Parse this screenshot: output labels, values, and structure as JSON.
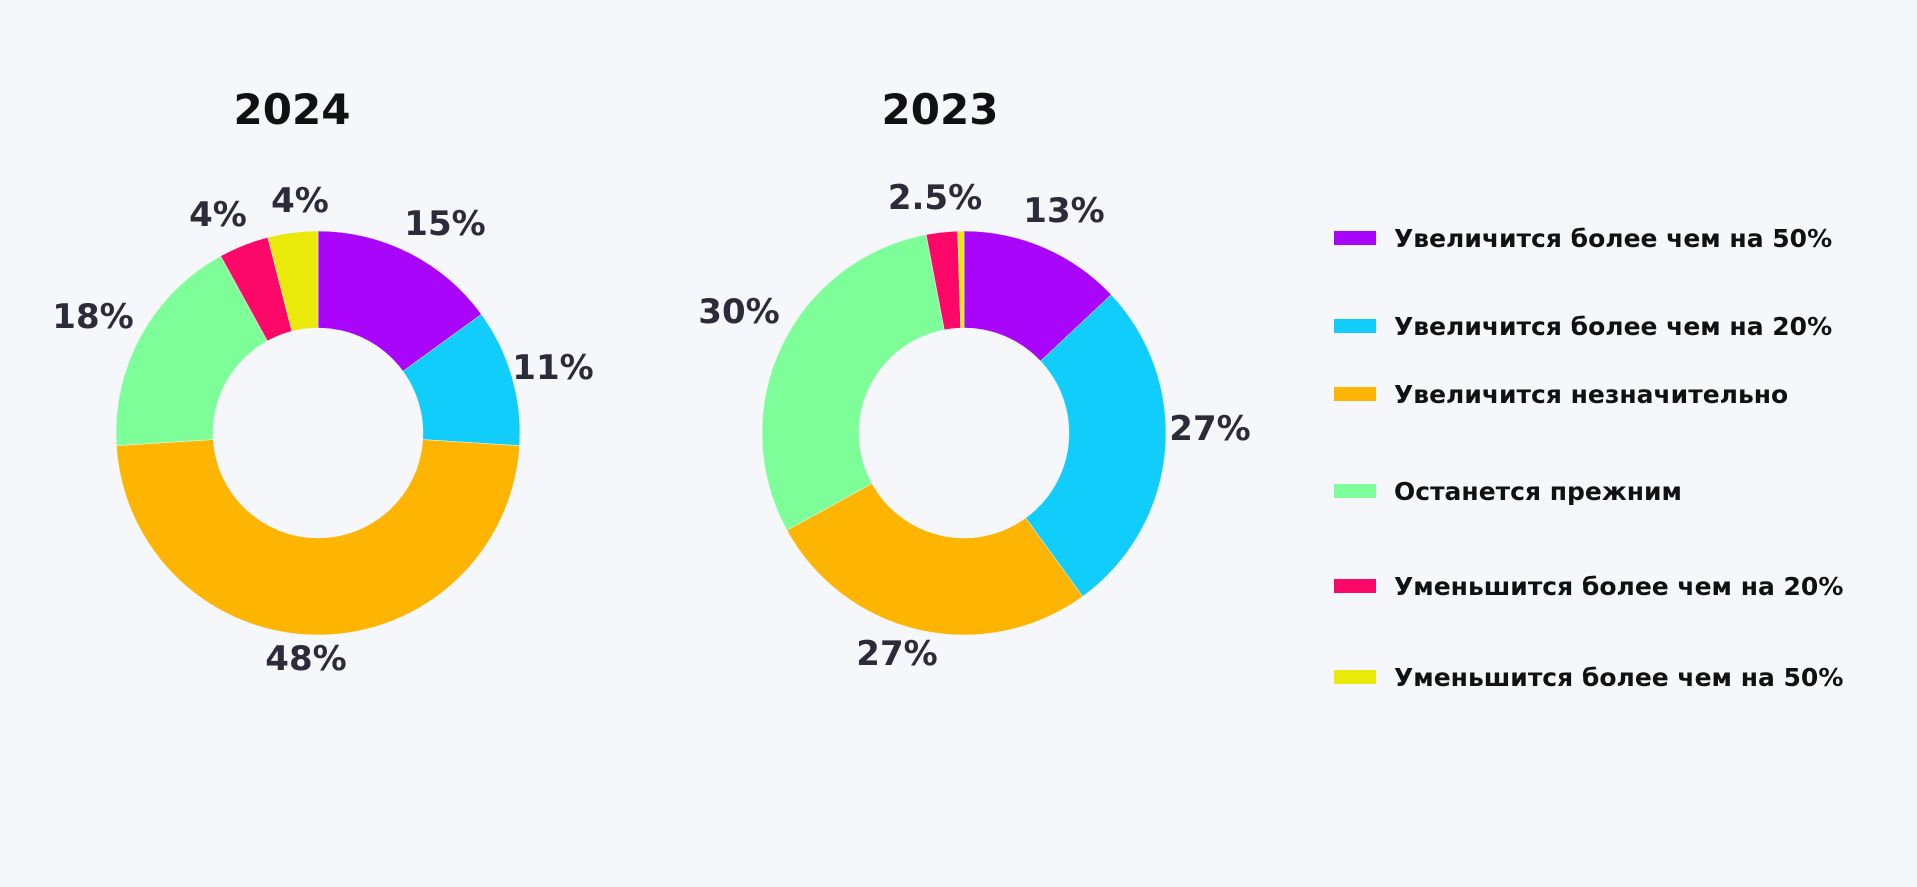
{
  "chart_data": {
    "type": "donut",
    "series_names": [
      "Увеличится более чем на 50%",
      "Увеличится более чем на 20%",
      "Увеличится незначительно",
      "Останется прежним",
      "Уменьшится более чем на 20%",
      "Уменьшится более чем на 50%"
    ],
    "colors": [
      "#a905fb",
      "#10cdfc",
      "#fdb501",
      "#7efe98",
      "#fb0868",
      "#e9e90a"
    ],
    "charts": [
      {
        "title": "2024",
        "values": [
          15,
          11,
          48,
          18,
          4,
          4
        ],
        "labels": [
          "15%",
          "11%",
          "48%",
          "18%",
          "4%",
          "4%"
        ]
      },
      {
        "title": "2023",
        "values": [
          13,
          27,
          27,
          30,
          2.5,
          0.5
        ],
        "labels": [
          "13%",
          "27%",
          "27%",
          "30%",
          "2.5%",
          ""
        ]
      }
    ],
    "legend_position": "right"
  }
}
